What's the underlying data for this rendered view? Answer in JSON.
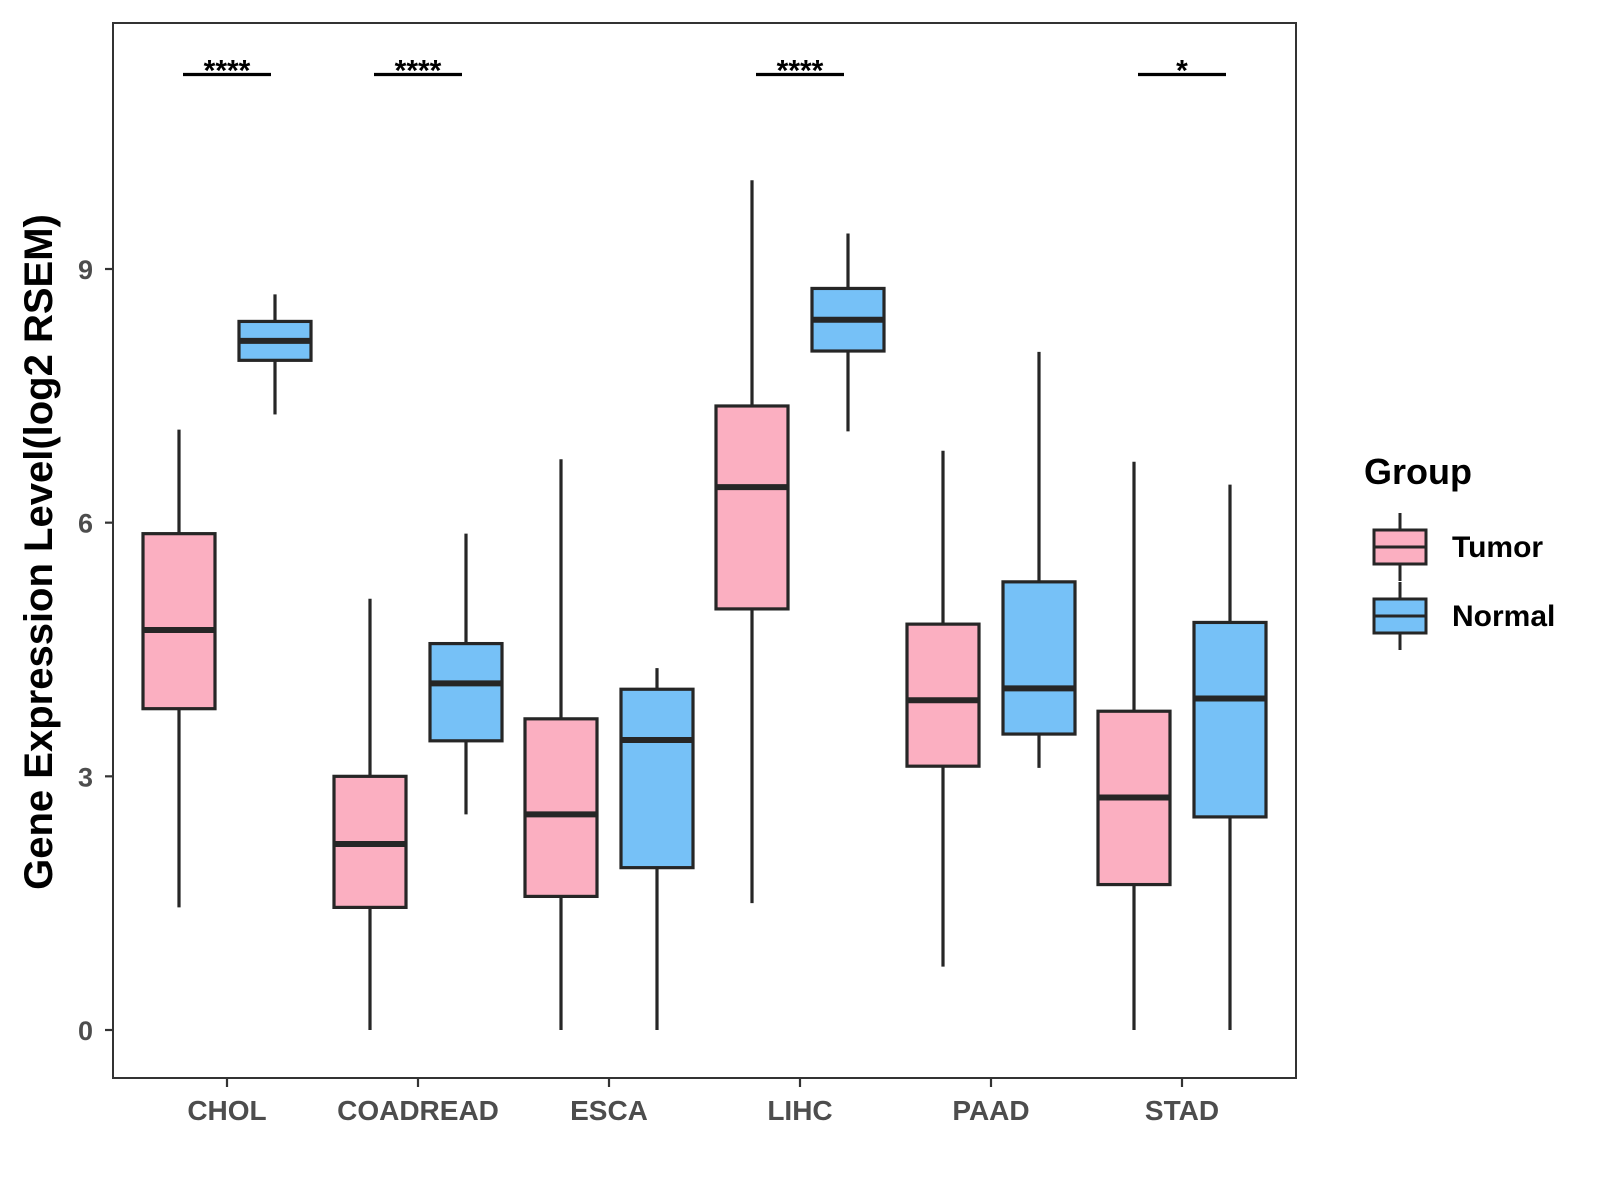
{
  "chart_data": {
    "type": "boxplot",
    "ylabel": "Gene Expression Level(log2 RSEM)",
    "xlabel": "",
    "ylim": [
      -0.55,
      11.9
    ],
    "yticks": [
      0,
      3,
      6,
      9
    ],
    "ytick_labels": [
      "0",
      "3",
      "6",
      "9"
    ],
    "categories": [
      "CHOL",
      "COADREAD",
      "ESCA",
      "LIHC",
      "PAAD",
      "STAD"
    ],
    "legend": {
      "title": "Group",
      "position": "right",
      "entries": [
        {
          "name": "Tumor",
          "color": "#FBAFC1"
        },
        {
          "name": "Normal",
          "color": "#76C1F7"
        }
      ]
    },
    "series": [
      {
        "name": "Tumor",
        "color": "#FBAFC1",
        "boxes": [
          {
            "min": 1.45,
            "q1": 3.8,
            "median": 4.73,
            "q3": 5.87,
            "max": 7.1
          },
          {
            "min": 0.0,
            "q1": 1.45,
            "median": 2.2,
            "q3": 3.0,
            "max": 5.1
          },
          {
            "min": 0.0,
            "q1": 1.58,
            "median": 2.55,
            "q3": 3.68,
            "max": 6.75
          },
          {
            "min": 1.5,
            "q1": 4.98,
            "median": 6.42,
            "q3": 7.38,
            "max": 10.05
          },
          {
            "min": 0.75,
            "q1": 3.12,
            "median": 3.9,
            "q3": 4.8,
            "max": 6.85
          },
          {
            "min": 0.0,
            "q1": 1.72,
            "median": 2.75,
            "q3": 3.77,
            "max": 6.72
          }
        ]
      },
      {
        "name": "Normal",
        "color": "#76C1F7",
        "boxes": [
          {
            "min": 7.28,
            "q1": 7.92,
            "median": 8.15,
            "q3": 8.38,
            "max": 8.7
          },
          {
            "min": 2.55,
            "q1": 3.42,
            "median": 4.1,
            "q3": 4.57,
            "max": 5.87
          },
          {
            "min": 0.0,
            "q1": 1.92,
            "median": 3.43,
            "q3": 4.03,
            "max": 4.28
          },
          {
            "min": 7.08,
            "q1": 8.03,
            "median": 8.4,
            "q3": 8.77,
            "max": 9.42
          },
          {
            "min": 3.1,
            "q1": 3.5,
            "median": 4.04,
            "q3": 5.3,
            "max": 8.02
          },
          {
            "min": 0.0,
            "q1": 2.52,
            "median": 3.92,
            "q3": 4.82,
            "max": 6.45
          }
        ]
      }
    ],
    "significance": [
      {
        "category": "CHOL",
        "label": "****"
      },
      {
        "category": "COADREAD",
        "label": "****"
      },
      {
        "category": "LIHC",
        "label": "****"
      },
      {
        "category": "STAD",
        "label": "*"
      }
    ],
    "significance_level": 11.3,
    "grid": false
  }
}
